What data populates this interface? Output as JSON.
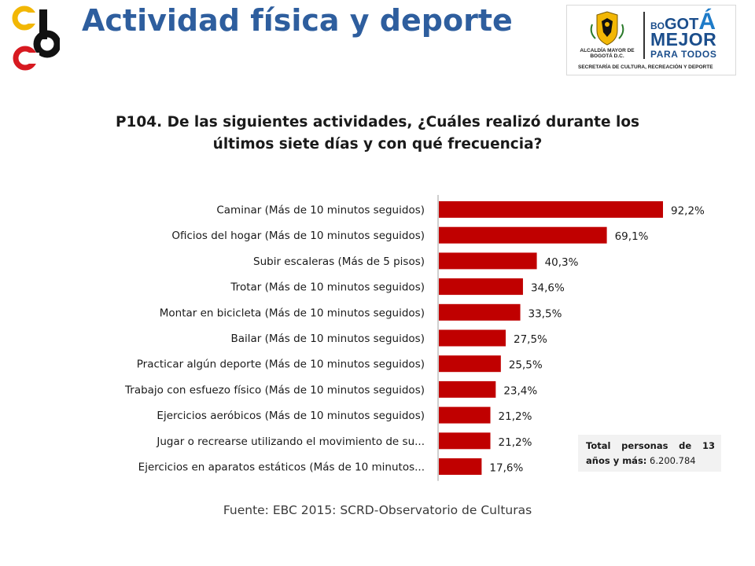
{
  "header": {
    "title": "Actividad física y deporte",
    "logo_right": {
      "alcaldia": "ALCALDÍA MAYOR DE BOGOTÁ D.C.",
      "bogota_bo": "BO",
      "bogota_got": "GOT",
      "bogota_a": "Á",
      "mejor": "MEJOR",
      "para_todos": "PARA TODOS",
      "secretaria": "SECRETARÍA DE CULTURA, RECREACIÓN Y DEPORTE"
    }
  },
  "chart_data": {
    "type": "bar",
    "orientation": "horizontal",
    "title": "P104. De las siguientes actividades, ¿Cuáles realizó durante los últimos siete días y con qué frecuencia?",
    "categories": [
      "Caminar (Más de 10 minutos seguidos)",
      "Oficios del hogar (Más de 10 minutos seguidos)",
      "Subir escaleras (Más de 5 pisos)",
      "Trotar (Más de 10 minutos seguidos)",
      "Montar en bicicleta (Más de 10 minutos seguidos)",
      "Bailar (Más de 10 minutos seguidos)",
      "Practicar algún deporte (Más de 10 minutos seguidos)",
      "Trabajo con esfuezo físico (Más de 10 minutos seguidos)",
      "Ejercicios aeróbicos (Más de 10 minutos seguidos)",
      "Jugar o recrearse utilizando el movimiento de su...",
      "Ejercicios en aparatos estáticos (Más de 10 minutos..."
    ],
    "values": [
      92.2,
      69.1,
      40.3,
      34.6,
      33.5,
      27.5,
      25.5,
      23.4,
      21.2,
      21.2,
      17.6
    ],
    "value_labels": [
      "92,2%",
      "69,1%",
      "40,3%",
      "34,6%",
      "33,5%",
      "27,5%",
      "25,5%",
      "23,4%",
      "21,2%",
      "21,2%",
      "17,6%"
    ],
    "xlim": [
      0,
      100
    ],
    "bar_color": "#c00000",
    "grid": false,
    "legend": "none"
  },
  "total_box": {
    "label": "Total personas de 13 años y más:",
    "value": "6.200.784"
  },
  "source": "Fuente: EBC 2015: SCRD-Observatorio de Culturas"
}
